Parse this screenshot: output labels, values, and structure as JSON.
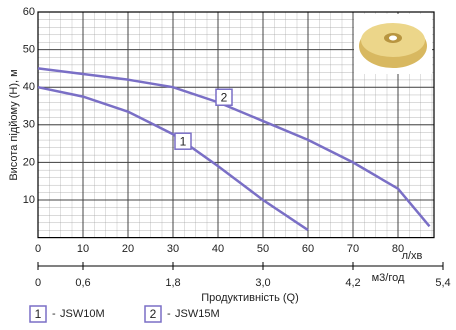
{
  "chart_data": {
    "type": "line",
    "y_label": "Висота підйому (H), м",
    "x_label": "Продуктивність (Q)",
    "x_unit": "л/хв",
    "x2_unit": "м3/год",
    "xlim": [
      0,
      88
    ],
    "xticks": [
      0,
      10,
      20,
      30,
      40,
      50,
      60,
      70,
      80
    ],
    "x2lim": [
      0,
      5.4
    ],
    "x2ticks": [
      0,
      {
        "value": 0.6,
        "label": "0,6"
      },
      {
        "value": 1.8,
        "label": "1,8"
      },
      {
        "value": 3.0,
        "label": "3,0"
      },
      {
        "value": 4.2,
        "label": "4,2"
      },
      {
        "value": 5.4,
        "label": "5,4"
      }
    ],
    "ylim": [
      0,
      60
    ],
    "yticks": [
      10,
      20,
      30,
      40,
      50,
      60
    ],
    "grid": true,
    "series": [
      {
        "name": "JSW10M",
        "label": "1",
        "color": "#7a6fc6",
        "x": [
          0,
          10,
          20,
          30,
          40,
          50,
          60
        ],
        "values": [
          40,
          37.5,
          33.5,
          27.5,
          19,
          10,
          2
        ]
      },
      {
        "name": "JSW15M",
        "label": "2",
        "color": "#7a6fc6",
        "x": [
          0,
          10,
          20,
          30,
          40,
          50,
          60,
          70,
          80,
          87
        ],
        "values": [
          45,
          43.5,
          42,
          40,
          36,
          31,
          26,
          20,
          13,
          3
        ]
      }
    ]
  }
}
